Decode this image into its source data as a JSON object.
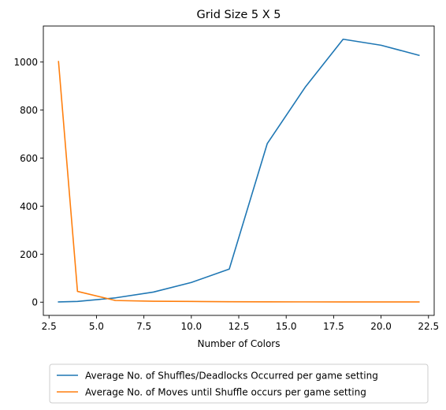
{
  "chart_data": {
    "type": "line",
    "title": "Grid Size 5 X 5",
    "xlabel": "Number of Colors",
    "ylabel": "",
    "xlim": [
      2.2,
      22.8
    ],
    "ylim": [
      -55,
      1150
    ],
    "xticks": [
      2.5,
      5.0,
      7.5,
      10.0,
      12.5,
      15.0,
      17.5,
      20.0,
      22.5
    ],
    "xtick_labels": [
      "2.5",
      "5.0",
      "7.5",
      "10.0",
      "12.5",
      "15.0",
      "17.5",
      "20.0",
      "22.5"
    ],
    "yticks": [
      0,
      200,
      400,
      600,
      800,
      1000
    ],
    "ytick_labels": [
      "0",
      "200",
      "400",
      "600",
      "800",
      "1000"
    ],
    "grid": false,
    "legend_placement": "below",
    "series": [
      {
        "name": "Average No. of Shuffles/Deadlocks Occurred per game setting",
        "color": "#1f77b4",
        "x": [
          3,
          4,
          6,
          8,
          10,
          12,
          14,
          16,
          18,
          20,
          22
        ],
        "y": [
          1,
          3,
          18,
          42,
          82,
          138,
          660,
          895,
          1095,
          1070,
          1028
        ]
      },
      {
        "name": "Average No. of Moves until Shuffle occurs per game setting",
        "color": "#ff7f0e",
        "x": [
          3,
          4,
          6,
          8,
          10,
          12,
          14,
          16,
          18,
          20,
          22
        ],
        "y": [
          1002,
          45,
          7,
          4,
          3,
          2,
          1.5,
          1.2,
          1,
          1,
          1
        ]
      }
    ]
  }
}
